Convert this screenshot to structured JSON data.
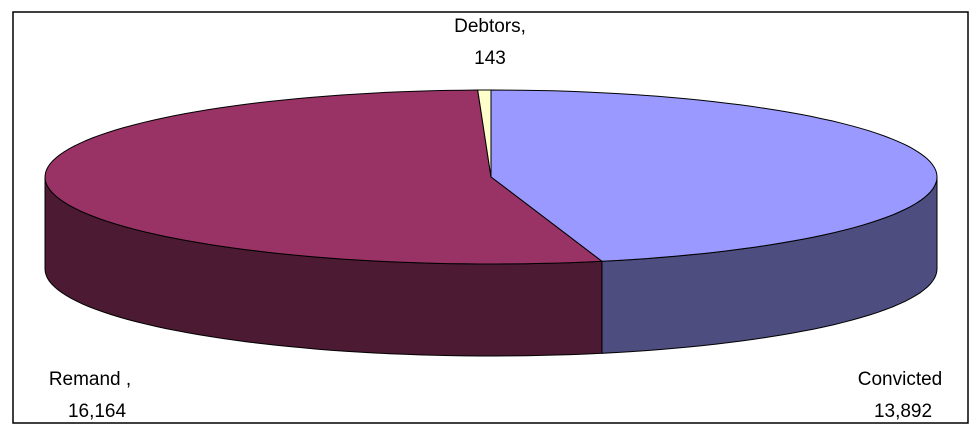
{
  "chart_data": {
    "type": "pie",
    "three_d": true,
    "categories": [
      "Convicted",
      "Remand ,",
      "Debtors,"
    ],
    "values": [
      13892,
      16164,
      143
    ],
    "value_labels": [
      "13,892",
      "16,164",
      "143"
    ],
    "colors": [
      "#9999ff",
      "#993366",
      "#ffffcc"
    ],
    "side_colors": [
      "#4d4d80",
      "#4d1a33",
      "#80806a"
    ]
  }
}
